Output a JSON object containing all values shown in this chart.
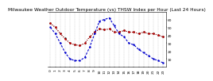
{
  "title": "Milwaukee Weather Outdoor Temperature (vs) THSW Index per Hour (Last 24 Hours)",
  "hours": [
    0,
    1,
    2,
    3,
    4,
    5,
    6,
    7,
    8,
    9,
    10,
    11,
    12,
    13,
    14,
    15,
    16,
    17,
    18,
    19,
    20,
    21,
    22,
    23
  ],
  "outdoor_temp": [
    55,
    50,
    42,
    35,
    30,
    28,
    27,
    30,
    38,
    44,
    48,
    47,
    48,
    44,
    44,
    46,
    44,
    44,
    42,
    44,
    42,
    42,
    40,
    38
  ],
  "thsw": [
    50,
    42,
    30,
    18,
    10,
    8,
    8,
    12,
    25,
    42,
    58,
    60,
    62,
    52,
    42,
    38,
    30,
    28,
    22,
    18,
    14,
    10,
    8,
    5
  ],
  "heat_index": [
    55,
    50,
    42,
    36,
    30,
    28,
    27,
    30,
    38,
    44,
    48,
    47,
    48,
    44,
    44,
    46,
    44,
    44,
    42,
    44,
    42,
    42,
    40,
    38
  ],
  "ylim_min": 0,
  "ylim_max": 70,
  "bg_color": "#ffffff",
  "grid_color": "#888888",
  "temp_color": "#cc0000",
  "thsw_color": "#0000cc",
  "heat_color": "#000000",
  "title_fontsize": 4.2,
  "tick_fontsize": 3.2,
  "yticks": [
    10,
    20,
    30,
    40,
    50,
    60
  ],
  "xticks_every": 1
}
